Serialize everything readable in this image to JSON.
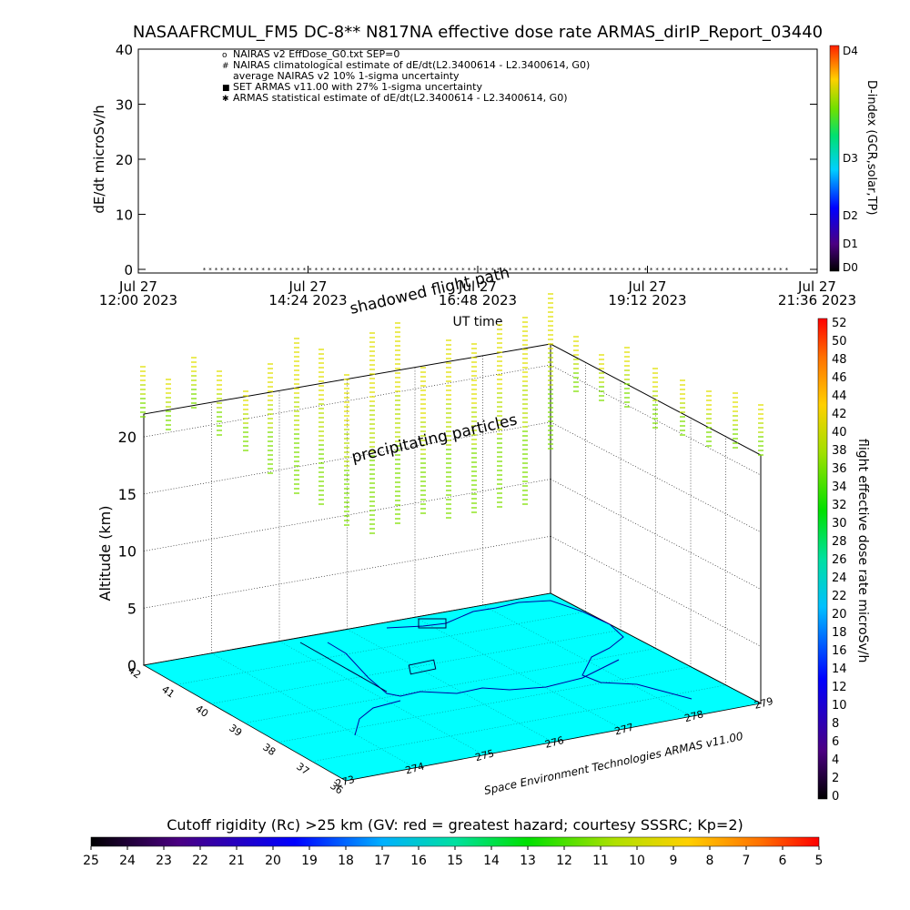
{
  "title": "NASAAFRCMUL_FM5 DC-8** N817NA effective dose rate ARMAS_dirIP_Report_03440",
  "chart_data": [
    {
      "type": "line",
      "name": "dose-rate-timeseries",
      "ylabel": "dE/dt microSv/h",
      "xlabel": "UT time",
      "ylim": [
        0,
        40
      ],
      "y_ticks": [
        "0",
        "10",
        "20",
        "30",
        "40"
      ],
      "x_ticks": [
        {
          "date": "Jul 27",
          "time": "12:00 2023"
        },
        {
          "date": "Jul 27",
          "time": "14:24 2023"
        },
        {
          "date": "Jul 27",
          "time": "16:48 2023"
        },
        {
          "date": "Jul 27",
          "time": "19:12 2023"
        },
        {
          "date": "Jul 27",
          "time": "21:36 2023"
        }
      ],
      "legend": [
        "NAIRAS v2 EffDose_G0.txt SEP=0",
        "NAIRAS climatological estimate of dE/dt(L2.3400614 - L2.3400614, G0)",
        "average NAIRAS v2 10% 1-sigma uncertainty",
        "SET ARMAS v11.00 with 27% 1-sigma uncertainty",
        "ARMAS statistical estimate of dE/dt(L2.3400614 - L2.3400614, G0)"
      ],
      "legend_placement": "top-left",
      "series": [
        {
          "name": "ARMAS statistical estimate",
          "x_start": "12:56",
          "x_end": "21:10",
          "value": 0,
          "count": 100
        }
      ],
      "right_colorbar": {
        "label": "D-index (GCR,solar,TP)",
        "ticks": [
          "D0",
          "D1",
          "D2",
          "D3",
          "D4"
        ]
      }
    },
    {
      "type": "scatter",
      "name": "3d-flight-path",
      "zlabel": "Altitude (km)",
      "z_ticks": [
        "0",
        "5",
        "10",
        "15",
        "20"
      ],
      "zlim": [
        0,
        22
      ],
      "lat_ticks": [
        "36",
        "37",
        "38",
        "39",
        "40",
        "41",
        "42"
      ],
      "lon_ticks": [
        "273",
        "274",
        "275",
        "276",
        "277",
        "278",
        "279"
      ],
      "annotations": [
        "shadowed flight path",
        "precipitating particles",
        "Space Environment Technologies ARMAS v11.00"
      ],
      "dose_points_note": "vertical columns of dose-rate markers colored ~28–38 microSv/h",
      "colorbar": {
        "label": "flight effective dose rate microSv/h",
        "ticks": [
          "0",
          "2",
          "4",
          "6",
          "8",
          "10",
          "12",
          "14",
          "16",
          "18",
          "20",
          "22",
          "24",
          "26",
          "28",
          "30",
          "32",
          "34",
          "36",
          "38",
          "40",
          "42",
          "44",
          "46",
          "48",
          "50",
          "52"
        ]
      }
    },
    {
      "type": "heatmap",
      "name": "cutoff-rigidity-colorbar",
      "label": "Cutoff rigidity (Rc) >25 km (GV: red = greatest hazard; courtesy SSSRC; Kp=2)",
      "ticks": [
        "25",
        "24",
        "23",
        "22",
        "21",
        "20",
        "19",
        "18",
        "17",
        "16",
        "15",
        "14",
        "13",
        "12",
        "11",
        "10",
        "9",
        "8",
        "7",
        "6",
        "5"
      ]
    }
  ],
  "colors": {
    "ground": "#00ffff",
    "dose_yellow": "#e0e000",
    "dose_green": "#7fe000",
    "path": "#0000a0"
  }
}
